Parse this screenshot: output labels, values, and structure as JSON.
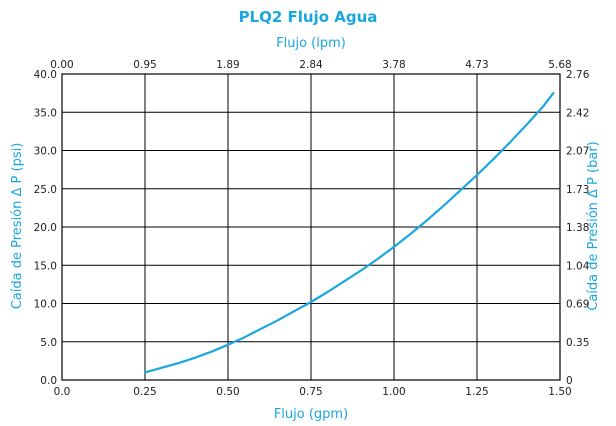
{
  "chart_data": {
    "type": "line",
    "title": "PLQ2  Flujo Agua",
    "xlabel": "Flujo (gpm)",
    "x2label": "Flujo (lpm)",
    "ylabel": "Caída de Presión Δ P (psi)",
    "y2label": "Caída de Presión Δ P (bar)",
    "xlim": [
      0,
      1.5
    ],
    "ylim": [
      0,
      40
    ],
    "grid": true,
    "x_ticks": [
      "0.0",
      "0.25",
      "0.50",
      "0.75",
      "1.00",
      "1.25",
      "1.50"
    ],
    "x2_ticks": [
      "0.00",
      "0.95",
      "1.89",
      "2.84",
      "3.78",
      "4.73",
      "5.68"
    ],
    "y_ticks": [
      "0.0",
      "5.0",
      "10.0",
      "15.0",
      "20.0",
      "25.0",
      "30.0",
      "35.0",
      "40.0"
    ],
    "y2_ticks": [
      "0",
      "0.35",
      "0.69",
      "1.04",
      "1.38",
      "1.73",
      "2.07",
      "2.42",
      "2.76"
    ],
    "line_color": "#1aa7e0",
    "series": [
      {
        "x": [
          0.25,
          0.3,
          0.35,
          0.4,
          0.45,
          0.5,
          0.55,
          0.6,
          0.65,
          0.7,
          0.75,
          0.8,
          0.85,
          0.9,
          0.95,
          1.0,
          1.05,
          1.1,
          1.15,
          1.2,
          1.25,
          1.3,
          1.35,
          1.4,
          1.45,
          1.48
        ],
        "y": [
          1.0,
          1.6,
          2.2,
          2.9,
          3.7,
          4.6,
          5.6,
          6.7,
          7.8,
          9.0,
          10.2,
          11.5,
          12.9,
          14.3,
          15.8,
          17.4,
          19.1,
          20.9,
          22.8,
          24.8,
          26.8,
          28.9,
          31.1,
          33.4,
          35.8,
          37.5
        ]
      }
    ]
  }
}
